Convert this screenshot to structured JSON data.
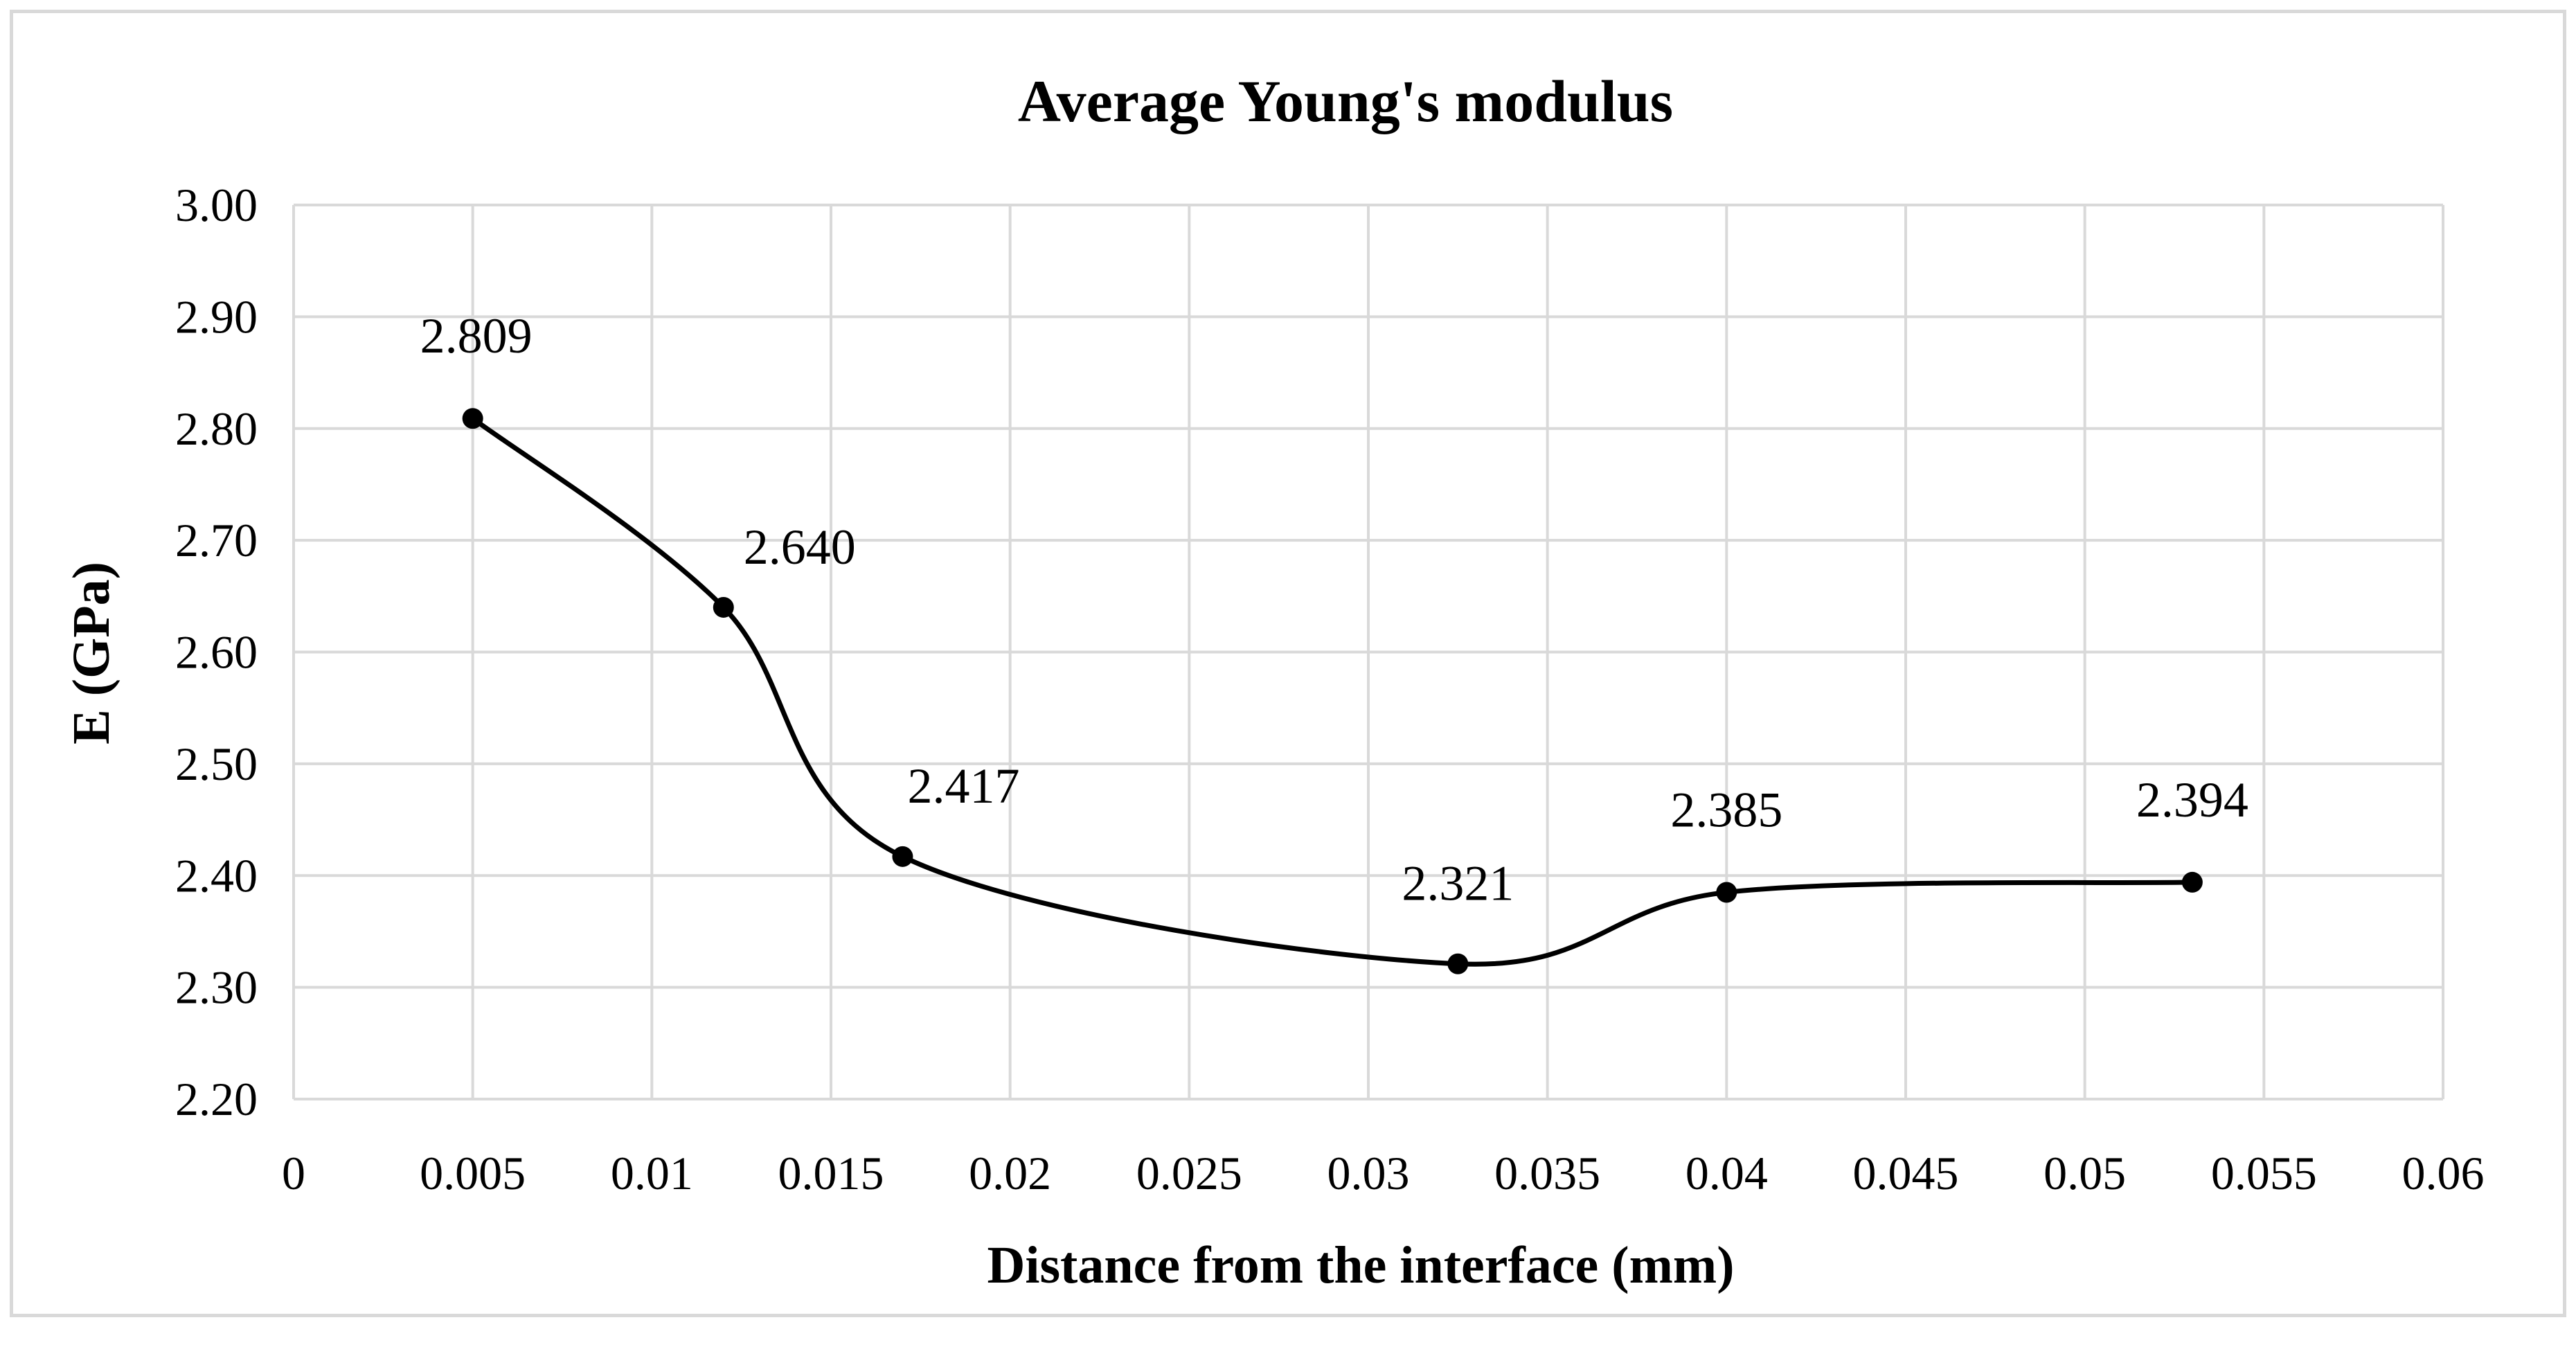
{
  "chart_data": {
    "type": "line",
    "title": "Average Young's modulus",
    "xlabel": "Distance from the interface (mm)",
    "ylabel": "E (GPa)",
    "xlim": [
      0,
      0.06
    ],
    "ylim": [
      2.2,
      3.0
    ],
    "x_ticks": [
      "0",
      "0.005",
      "0.01",
      "0.015",
      "0.02",
      "0.025",
      "0.03",
      "0.035",
      "0.04",
      "0.045",
      "0.05",
      "0.055",
      "0.06"
    ],
    "y_ticks": [
      "2.20",
      "2.30",
      "2.40",
      "2.50",
      "2.60",
      "2.70",
      "2.80",
      "2.90",
      "3.00"
    ],
    "grid": true,
    "legend": "none",
    "smooth": true,
    "series": [
      {
        "name": "Average Young's modulus",
        "color": "#000000",
        "x": [
          0.005,
          0.012,
          0.017,
          0.0325,
          0.04,
          0.053
        ],
        "y": [
          2.809,
          2.64,
          2.417,
          2.321,
          2.385,
          2.394
        ],
        "labels": [
          "2.809",
          "2.640",
          "2.417",
          "2.321",
          "2.385",
          "2.394"
        ]
      }
    ]
  }
}
